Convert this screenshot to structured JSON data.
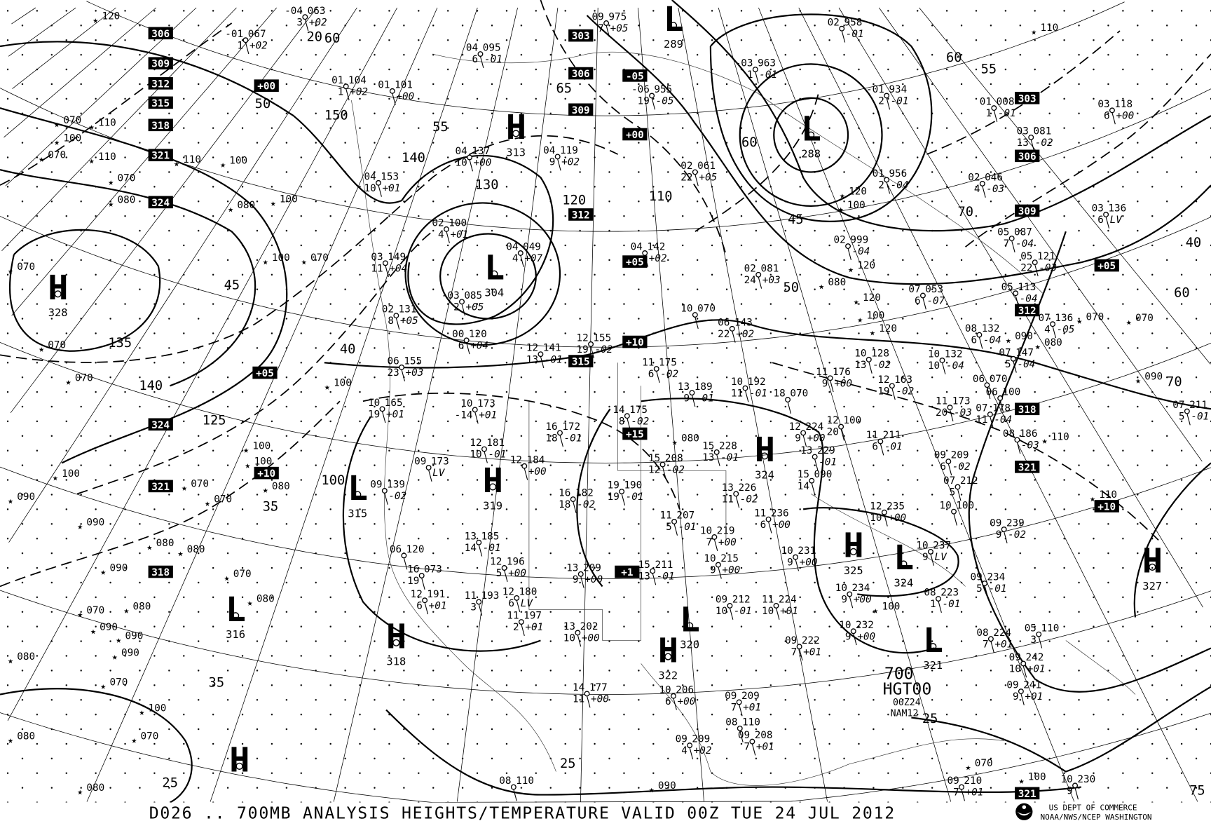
{
  "caption": "D026 .. 700MB   ANALYSIS  HEIGHTS/TEMPERATURE VALID 00Z TUE 24 JUL 2012",
  "legend": {
    "level": "700",
    "field": "HGT00",
    "run": "00Z24",
    "model": "NAM12"
  },
  "credit": {
    "line1": "US DEPT OF COMMERCE",
    "line2": "NOAA/NWS/NCEP WASHINGTON",
    "logo": "noaa-logo"
  },
  "centers": [
    {
      "type": "H",
      "value": "328"
    },
    {
      "type": "L",
      "value": "304"
    },
    {
      "type": "H",
      "value": "313"
    },
    {
      "type": "L",
      "value": "289"
    },
    {
      "type": "L",
      "value": "288"
    },
    {
      "type": "L",
      "value": "315"
    },
    {
      "type": "H",
      "value": "319"
    },
    {
      "type": "H",
      "value": "324"
    },
    {
      "type": "H",
      "value": "325"
    },
    {
      "type": "L",
      "value": "324"
    },
    {
      "type": "H",
      "value": "327"
    },
    {
      "type": "L",
      "value": "316"
    },
    {
      "type": "H",
      "value": "318"
    },
    {
      "type": "L",
      "value": "320"
    },
    {
      "type": "H",
      "value": "322"
    },
    {
      "type": "L",
      "value": "321"
    },
    {
      "type": "H",
      "value": ""
    }
  ],
  "boxed_labels": [
    "306",
    "309",
    "312",
    "315",
    "318",
    "321",
    "324",
    "324",
    "321",
    "318",
    "303",
    "306",
    "309",
    "312",
    "315",
    "-05",
    "+00",
    "+00",
    "+05",
    "+05",
    "+10",
    "+15",
    "+10",
    "+10",
    "+05",
    "303",
    "306",
    "309",
    "312",
    "318",
    "321",
    "321",
    "+1"
  ],
  "contour_labels": [
    "60",
    "55",
    "50",
    "45",
    "40",
    "35",
    "25",
    "20",
    "150",
    "140",
    "130",
    "120",
    "110",
    "100",
    "125",
    "135",
    "140",
    "60",
    "55",
    "50",
    "45",
    "40",
    "60",
    "70",
    "25",
    "25",
    "35",
    "60",
    "65",
    "70",
    "75"
  ],
  "stations": [
    {
      "t": "-04",
      "h": "063",
      "d": "3",
      "c": "+02"
    },
    {
      "t": "-01",
      "h": "067",
      "d": "1",
      "c": "+02"
    },
    {
      "t": "01",
      "h": "104",
      "d": "1",
      "c": "+02"
    },
    {
      "t": "01",
      "h": "101",
      "d": "",
      "c": "+00"
    },
    {
      "t": "04",
      "h": "095",
      "d": "6",
      "c": "-01"
    },
    {
      "t": "09",
      "h": "975",
      "d": "7",
      "c": "+05"
    },
    {
      "t": "02",
      "h": "958",
      "d": "",
      "c": "-01"
    },
    {
      "t": "-03",
      "h": "963",
      "d": "1",
      "c": "-01"
    },
    {
      "t": "-06",
      "h": "955",
      "d": "19",
      "c": "-05"
    },
    {
      "t": "-01",
      "h": "934",
      "d": "2",
      "c": "-01"
    },
    {
      "t": "01",
      "h": "008",
      "d": "1",
      "c": "-01"
    },
    {
      "t": "03",
      "h": "118",
      "d": "6",
      "c": "+00"
    },
    {
      "t": "04",
      "h": "137",
      "d": "10",
      "c": "+00"
    },
    {
      "t": "04",
      "h": "119",
      "d": "9",
      "c": "+02"
    },
    {
      "t": "02",
      "h": "061",
      "d": "22",
      "c": "+05"
    },
    {
      "t": "04",
      "h": "153",
      "d": "10",
      "c": "+01"
    },
    {
      "t": "02",
      "h": "100",
      "d": "4",
      "c": "+01"
    },
    {
      "t": "04",
      "h": "049",
      "d": "4",
      "c": "+07"
    },
    {
      "t": "03",
      "h": "149",
      "d": "11",
      "c": "+04"
    },
    {
      "t": "-03",
      "h": "085",
      "d": "2",
      "c": "+05"
    },
    {
      "t": "02",
      "h": "131",
      "d": "8",
      "c": "+05"
    },
    {
      "t": "00",
      "h": "120",
      "d": "6",
      "c": "+04"
    },
    {
      "t": "04",
      "h": "142",
      "d": "",
      "c": "+02"
    },
    {
      "t": "02",
      "h": "081",
      "d": "24",
      "c": "+03"
    },
    {
      "t": "02",
      "h": "999",
      "d": "",
      "c": "-04"
    },
    {
      "t": "01",
      "h": "956",
      "d": "2",
      "c": "-04"
    },
    {
      "t": "02",
      "h": "046",
      "d": "4",
      "c": "-03"
    },
    {
      "t": "03",
      "h": "081",
      "d": "13",
      "c": "-02"
    },
    {
      "t": "03",
      "h": "136",
      "d": "6",
      "c": "LV"
    },
    {
      "t": "05",
      "h": "087",
      "d": "7",
      "c": "-04"
    },
    {
      "t": "05",
      "h": "121",
      "d": "22",
      "c": "-03"
    },
    {
      "t": "07",
      "h": "053",
      "d": "6",
      "c": "-07"
    },
    {
      "t": "05",
      "h": "113",
      "d": "",
      "c": "-04"
    },
    {
      "t": "07",
      "h": "136",
      "d": "4",
      "c": "-05"
    },
    {
      "t": "06",
      "h": "143",
      "d": "22",
      "c": "+02"
    },
    {
      "t": "12",
      "h": "155",
      "d": "19",
      "c": "-02"
    },
    {
      "t": "12",
      "h": "141",
      "d": "13",
      "c": "-01"
    },
    {
      "t": "06",
      "h": "155",
      "d": "23",
      "c": "+03"
    },
    {
      "t": "11",
      "h": "175",
      "d": "6",
      "c": "-02"
    },
    {
      "t": "13",
      "h": "189",
      "d": "9",
      "c": "-01"
    },
    {
      "t": "10",
      "h": "192",
      "d": "11",
      "c": "-01"
    },
    {
      "t": "10",
      "h": "128",
      "d": "13",
      "c": "-02"
    },
    {
      "t": "10",
      "h": "132",
      "d": "10",
      "c": "-04"
    },
    {
      "t": "08",
      "h": "132",
      "d": "6",
      "c": "-04"
    },
    {
      "t": "07",
      "h": "147",
      "d": "5",
      "c": "-04"
    },
    {
      "t": "12",
      "h": "163",
      "d": "19",
      "c": "-02"
    },
    {
      "t": "11",
      "h": "176",
      "d": "9",
      "c": "+00"
    },
    {
      "t": "10",
      "h": "165",
      "d": "19",
      "c": "+01"
    },
    {
      "t": "10",
      "h": "173",
      "d": "-14",
      "c": "+01"
    },
    {
      "t": "14",
      "h": "175",
      "d": "8",
      "c": "-02"
    },
    {
      "t": "16",
      "h": "172",
      "d": "18",
      "c": "-01"
    },
    {
      "t": "12",
      "h": "181",
      "d": "10",
      "c": "-01"
    },
    {
      "t": "12",
      "h": "184",
      "d": "",
      "c": "+00"
    },
    {
      "t": "09",
      "h": "173",
      "d": "",
      "c": "LV"
    },
    {
      "t": "09",
      "h": "139",
      "d": "",
      "c": "-02"
    },
    {
      "t": "15",
      "h": "208",
      "d": "12",
      "c": "-02"
    },
    {
      "t": "15",
      "h": "228",
      "d": "13",
      "c": "-01"
    },
    {
      "t": "12",
      "h": "224",
      "d": "9",
      "c": "+00"
    },
    {
      "t": "13",
      "h": "229",
      "d": "",
      "c": "-01"
    },
    {
      "t": "15",
      "h": "090",
      "d": "14",
      "c": ""
    },
    {
      "t": "12",
      "h": "100",
      "d": "20",
      "c": ""
    },
    {
      "t": "11",
      "h": "211",
      "d": "6",
      "c": "-01"
    },
    {
      "t": "11",
      "h": "173",
      "d": "20",
      "c": "-03"
    },
    {
      "t": "07",
      "h": "178",
      "d": "11",
      "c": "-04"
    },
    {
      "t": "08",
      "h": "186",
      "d": "",
      "c": "-03"
    },
    {
      "t": "06",
      "h": "100",
      "d": "",
      "c": ""
    },
    {
      "t": "09",
      "h": "209",
      "d": "6",
      "c": "-02"
    },
    {
      "t": "07",
      "h": "212",
      "d": "5",
      "c": ""
    },
    {
      "t": "16",
      "h": "182",
      "d": "18",
      "c": "-02"
    },
    {
      "t": "19",
      "h": "190",
      "d": "19",
      "c": "-01"
    },
    {
      "t": "13",
      "h": "226",
      "d": "11",
      "c": "-02"
    },
    {
      "t": "11",
      "h": "207",
      "d": "5",
      "c": "-01"
    },
    {
      "t": "10",
      "h": "219",
      "d": "7",
      "c": "+00"
    },
    {
      "t": "11",
      "h": "236",
      "d": "6",
      "c": "+00"
    },
    {
      "t": "12",
      "h": "235",
      "d": "10",
      "c": "+00"
    },
    {
      "t": "10",
      "h": "100",
      "d": "",
      "c": ""
    },
    {
      "t": "09",
      "h": "239",
      "d": "9",
      "c": "-02"
    },
    {
      "t": "13",
      "h": "185",
      "d": "14",
      "c": "-01"
    },
    {
      "t": "12",
      "h": "196",
      "d": "5",
      "c": "+00"
    },
    {
      "t": "13",
      "h": "209",
      "d": "9",
      "c": "+00"
    },
    {
      "t": "15",
      "h": "211",
      "d": "13",
      "c": "-01"
    },
    {
      "t": "10",
      "h": "215",
      "d": "9",
      "c": "+00"
    },
    {
      "t": "10",
      "h": "231",
      "d": "9",
      "c": "+00"
    },
    {
      "t": "10",
      "h": "234",
      "d": "9",
      "c": "+00"
    },
    {
      "t": "10",
      "h": "237",
      "d": "9",
      "c": "LV"
    },
    {
      "t": "09",
      "h": "234",
      "d": "5",
      "c": "-01"
    },
    {
      "t": "08",
      "h": "223",
      "d": "1",
      "c": "-01"
    },
    {
      "t": "16",
      "h": "073",
      "d": "19",
      "c": ""
    },
    {
      "t": "12",
      "h": "191",
      "d": "6",
      "c": "+01"
    },
    {
      "t": "11",
      "h": "193",
      "d": "3",
      "c": ""
    },
    {
      "t": "12",
      "h": "180",
      "d": "6",
      "c": "LV"
    },
    {
      "t": "11",
      "h": "197",
      "d": "2",
      "c": "+01"
    },
    {
      "t": "13",
      "h": "202",
      "d": "10",
      "c": "+00"
    },
    {
      "t": "09",
      "h": "212",
      "d": "10",
      "c": "-01"
    },
    {
      "t": "11",
      "h": "224",
      "d": "10",
      "c": "+01"
    },
    {
      "t": "10",
      "h": "232",
      "d": "9",
      "c": "+00"
    },
    {
      "t": "09",
      "h": "222",
      "d": "7",
      "c": "+01"
    },
    {
      "t": "08",
      "h": "224",
      "d": "7",
      "c": "+01"
    },
    {
      "t": "05",
      "h": "110",
      "d": "3",
      "c": ""
    },
    {
      "t": "09",
      "h": "242",
      "d": "10",
      "c": "+01"
    },
    {
      "t": "09",
      "h": "241",
      "d": "9",
      "c": "+01"
    },
    {
      "t": "10",
      "h": "206",
      "d": "6",
      "c": "+00"
    },
    {
      "t": "14",
      "h": "177",
      "d": "11",
      "c": "+00"
    },
    {
      "t": "09",
      "h": "209",
      "d": "7",
      "c": "+01"
    },
    {
      "t": "08",
      "h": "110",
      "d": "",
      "c": ""
    },
    {
      "t": "09",
      "h": "208",
      "d": "7",
      "c": "+01"
    },
    {
      "t": "09",
      "h": "209",
      "d": "4",
      "c": "+02"
    },
    {
      "t": "09",
      "h": "210",
      "d": "7",
      "c": "+01"
    },
    {
      "t": "10",
      "h": "230",
      "d": "9",
      "c": ""
    },
    {
      "t": "06",
      "h": "120",
      "d": "",
      "c": ""
    },
    {
      "t": "08",
      "h": "110",
      "d": "",
      "c": ""
    },
    {
      "t": "06",
      "h": "070",
      "d": "",
      "c": ""
    },
    {
      "t": "07",
      "h": "211",
      "d": "5",
      "c": "-01"
    },
    {
      "t": "18",
      "h": "070",
      "d": "",
      "c": ""
    },
    {
      "t": "10",
      "h": "070",
      "d": "",
      "c": ""
    }
  ],
  "ship_reports": [
    "120",
    "110",
    "100",
    "070",
    "100",
    "110",
    "070",
    "110",
    "110",
    "100",
    "080",
    "100",
    "070",
    "080",
    "100",
    "070",
    "070",
    "070",
    "070",
    "100",
    "100",
    "090",
    "070",
    "070",
    "100",
    "080",
    "090",
    "080",
    "080",
    "090",
    "070",
    "080",
    "080",
    "070",
    "090",
    "090",
    "080",
    "090",
    "070",
    "080",
    "100",
    "070",
    "080",
    "090",
    "100",
    "120",
    "120",
    "120",
    "100",
    "080",
    "080",
    "070",
    "100",
    "110",
    "110",
    "090",
    "090",
    "070",
    "070",
    "100",
    "120",
    "080"
  ]
}
